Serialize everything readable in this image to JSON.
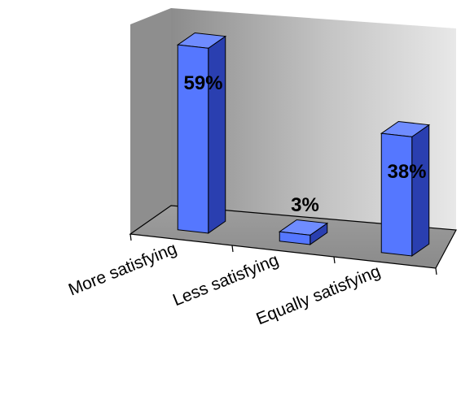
{
  "chart_data": {
    "type": "bar",
    "categories": [
      "More satisfying",
      "Less satisfying",
      "Equally satisfying"
    ],
    "values": [
      59,
      3,
      38
    ],
    "data_labels": [
      "59%",
      "3%",
      "38%"
    ],
    "ylim": [
      0,
      63
    ],
    "grid": false,
    "legend": "none",
    "bar_color": "#5577ff",
    "wall_color": "#b4b4b4",
    "floor_color": "#9a9a9a"
  }
}
